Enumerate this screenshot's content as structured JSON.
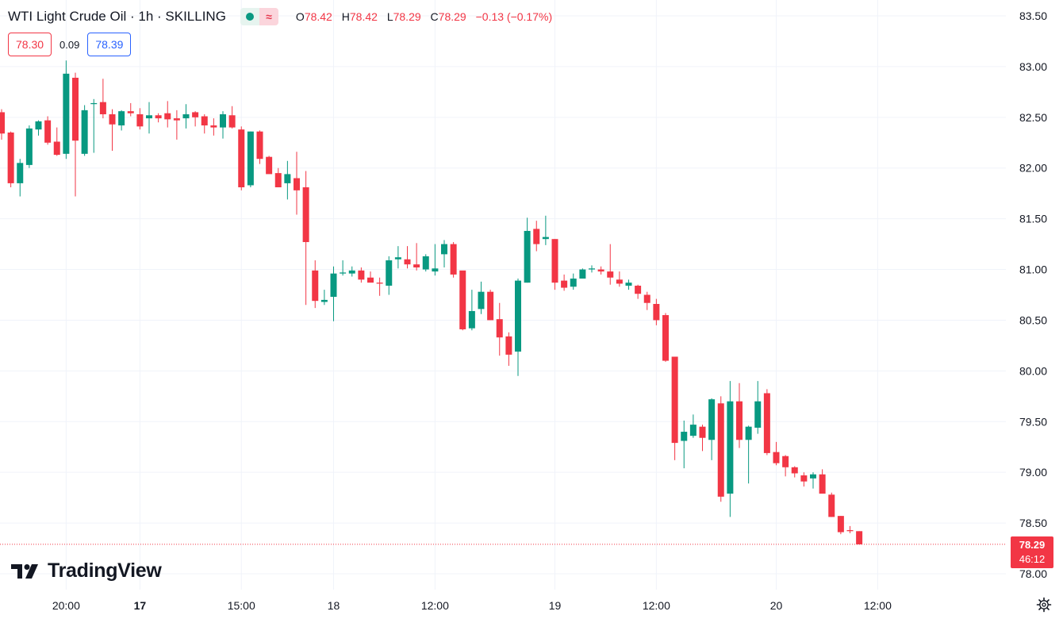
{
  "header": {
    "symbol_title": "WTI Light Crude Oil · 1h · SKILLING",
    "ohlc": {
      "open_label": "O",
      "open": "78.42",
      "high_label": "H",
      "high": "78.42",
      "low_label": "L",
      "low": "78.29",
      "close_label": "C",
      "close": "78.29",
      "change": "−0.13 (−0.17%)"
    },
    "status_colors": {
      "market_open": "#089981",
      "indicator": "#f23645"
    }
  },
  "quote": {
    "sell": "78.30",
    "spread": "0.09",
    "buy": "78.39"
  },
  "brand": {
    "logo_text": "TradingView"
  },
  "last_price": {
    "price": "78.29",
    "countdown": "46:12"
  },
  "colors": {
    "up": "#089981",
    "down": "#f23645",
    "grid": "#f0f3fa",
    "axis_text": "#131722"
  },
  "icons": {
    "settings": "gear-icon",
    "logo": "tradingview-logo-icon"
  },
  "chart_data": {
    "type": "candlestick",
    "timeframe": "1h",
    "y_axis": {
      "range": [
        78.0,
        83.5
      ],
      "ticks": [
        "83.50",
        "83.00",
        "82.50",
        "82.00",
        "81.50",
        "81.00",
        "80.50",
        "80.00",
        "79.50",
        "79.00",
        "78.50",
        "78.00"
      ]
    },
    "x_axis": {
      "ticks": [
        {
          "label": "20:00",
          "bar": 7,
          "bold": false
        },
        {
          "label": "17",
          "bar": 15,
          "bold": true
        },
        {
          "label": "15:00",
          "bar": 26,
          "bold": false
        },
        {
          "label": "18",
          "bar": 36,
          "bold": false
        },
        {
          "label": "12:00",
          "bar": 47,
          "bold": false
        },
        {
          "label": "19",
          "bar": 60,
          "bold": false
        },
        {
          "label": "12:00",
          "bar": 71,
          "bold": false
        },
        {
          "label": "20",
          "bar": 84,
          "bold": false
        },
        {
          "label": "12:00",
          "bar": 95,
          "bold": false
        }
      ]
    },
    "last_price_line": 78.29,
    "candles": [
      [
        82.55,
        82.58,
        82.28,
        82.34
      ],
      [
        82.35,
        82.36,
        81.81,
        81.85
      ],
      [
        81.85,
        82.09,
        81.72,
        82.05
      ],
      [
        82.03,
        82.42,
        82.0,
        82.39
      ],
      [
        82.38,
        82.47,
        82.32,
        82.46
      ],
      [
        82.47,
        82.51,
        82.23,
        82.25
      ],
      [
        82.26,
        82.4,
        82.12,
        82.13
      ],
      [
        82.14,
        83.06,
        82.09,
        82.93
      ],
      [
        82.89,
        82.94,
        81.72,
        82.27
      ],
      [
        82.14,
        82.62,
        82.12,
        82.57
      ],
      [
        82.63,
        82.68,
        82.15,
        82.64
      ],
      [
        82.65,
        82.88,
        82.49,
        82.53
      ],
      [
        82.53,
        82.58,
        82.17,
        82.43
      ],
      [
        82.42,
        82.57,
        82.37,
        82.56
      ],
      [
        82.56,
        82.64,
        82.51,
        82.54
      ],
      [
        82.53,
        82.59,
        82.38,
        82.41
      ],
      [
        82.49,
        82.65,
        82.34,
        82.52
      ],
      [
        82.52,
        82.54,
        82.45,
        82.49
      ],
      [
        82.54,
        82.66,
        82.4,
        82.48
      ],
      [
        82.49,
        82.57,
        82.28,
        82.47
      ],
      [
        82.49,
        82.63,
        82.39,
        82.53
      ],
      [
        82.55,
        82.56,
        82.41,
        82.5
      ],
      [
        82.51,
        82.53,
        82.34,
        82.42
      ],
      [
        82.42,
        82.49,
        82.32,
        82.4
      ],
      [
        82.4,
        82.56,
        82.29,
        82.53
      ],
      [
        82.52,
        82.61,
        82.39,
        82.4
      ],
      [
        82.38,
        82.41,
        81.78,
        81.81
      ],
      [
        81.83,
        82.36,
        81.81,
        82.36
      ],
      [
        82.36,
        82.37,
        82.04,
        82.09
      ],
      [
        82.11,
        82.12,
        81.95,
        81.94
      ],
      [
        81.95,
        82.0,
        81.82,
        81.81
      ],
      [
        81.85,
        82.07,
        81.69,
        81.94
      ],
      [
        81.9,
        82.16,
        81.54,
        81.78
      ],
      [
        81.81,
        81.97,
        80.65,
        81.27
      ],
      [
        80.99,
        81.09,
        80.62,
        80.69
      ],
      [
        80.68,
        80.8,
        80.65,
        80.7
      ],
      [
        80.73,
        81.03,
        80.49,
        80.96
      ],
      [
        80.96,
        81.09,
        80.94,
        80.97
      ],
      [
        80.96,
        81.03,
        80.93,
        80.99
      ],
      [
        80.99,
        81.02,
        80.87,
        80.9
      ],
      [
        80.92,
        80.98,
        80.88,
        80.87
      ],
      [
        80.87,
        80.92,
        80.74,
        80.86
      ],
      [
        80.84,
        81.13,
        80.75,
        81.09
      ],
      [
        81.1,
        81.23,
        81.01,
        81.12
      ],
      [
        81.1,
        81.23,
        81.01,
        81.05
      ],
      [
        81.05,
        81.26,
        80.99,
        81.02
      ],
      [
        81.0,
        81.15,
        80.98,
        81.13
      ],
      [
        80.98,
        81.25,
        80.94,
        81.01
      ],
      [
        81.15,
        81.29,
        81.02,
        81.25
      ],
      [
        81.25,
        81.27,
        80.92,
        80.95
      ],
      [
        80.99,
        80.94,
        80.4,
        80.41
      ],
      [
        80.42,
        80.8,
        80.4,
        80.59
      ],
      [
        80.61,
        80.88,
        80.56,
        80.78
      ],
      [
        80.78,
        80.8,
        80.5,
        80.5
      ],
      [
        80.51,
        80.67,
        80.15,
        80.33
      ],
      [
        80.34,
        80.38,
        80.05,
        80.16
      ],
      [
        80.19,
        80.91,
        79.95,
        80.89
      ],
      [
        80.87,
        81.51,
        80.87,
        81.38
      ],
      [
        81.4,
        81.48,
        81.18,
        81.25
      ],
      [
        81.3,
        81.53,
        81.24,
        81.32
      ],
      [
        81.3,
        81.3,
        80.8,
        80.87
      ],
      [
        80.89,
        80.95,
        80.79,
        80.82
      ],
      [
        80.83,
        80.96,
        80.8,
        80.91
      ],
      [
        80.91,
        81.01,
        80.94,
        81.0
      ],
      [
        81.0,
        81.04,
        80.97,
        81.01
      ],
      [
        81.0,
        81.03,
        80.95,
        80.98
      ],
      [
        80.98,
        81.25,
        80.85,
        80.92
      ],
      [
        80.9,
        80.98,
        80.83,
        80.86
      ],
      [
        80.84,
        80.9,
        80.8,
        80.87
      ],
      [
        80.84,
        80.85,
        80.71,
        80.76
      ],
      [
        80.75,
        80.78,
        80.6,
        80.67
      ],
      [
        80.66,
        80.71,
        80.45,
        80.5
      ],
      [
        80.55,
        80.57,
        80.09,
        80.1
      ],
      [
        80.14,
        80.09,
        79.12,
        79.29
      ],
      [
        79.31,
        79.51,
        79.04,
        79.4
      ],
      [
        79.36,
        79.57,
        79.34,
        79.47
      ],
      [
        79.45,
        79.47,
        79.21,
        79.34
      ],
      [
        79.32,
        79.73,
        79.12,
        79.72
      ],
      [
        79.68,
        79.75,
        78.71,
        78.76
      ],
      [
        78.79,
        79.9,
        78.56,
        79.7
      ],
      [
        79.7,
        79.88,
        79.24,
        79.32
      ],
      [
        79.32,
        79.46,
        78.89,
        79.45
      ],
      [
        79.44,
        79.9,
        79.38,
        79.7
      ],
      [
        79.78,
        79.82,
        79.17,
        79.19
      ],
      [
        79.2,
        79.3,
        79.07,
        79.09
      ],
      [
        79.16,
        79.17,
        78.96,
        79.05
      ],
      [
        79.05,
        79.06,
        78.95,
        78.99
      ],
      [
        78.97,
        79.0,
        78.86,
        78.91
      ],
      [
        78.94,
        79.0,
        78.84,
        78.98
      ],
      [
        78.98,
        79.03,
        78.8,
        78.79
      ],
      [
        78.78,
        78.8,
        78.56,
        78.56
      ],
      [
        78.57,
        78.57,
        78.39,
        78.41
      ],
      [
        78.43,
        78.47,
        78.4,
        78.42
      ],
      [
        78.42,
        78.42,
        78.29,
        78.29
      ]
    ]
  }
}
